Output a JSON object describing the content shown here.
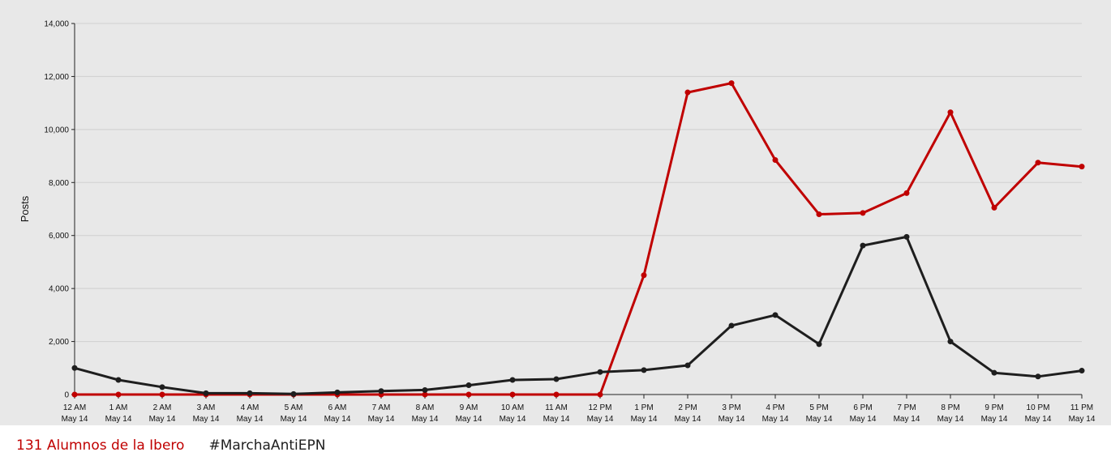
{
  "chart_data": {
    "type": "line",
    "title": "",
    "xlabel": "",
    "ylabel": "Posts",
    "ylim": [
      0,
      14000
    ],
    "yticks": [
      0,
      2000,
      4000,
      6000,
      8000,
      10000,
      12000,
      14000
    ],
    "ytick_labels": [
      "0",
      "2,000",
      "4,000",
      "6,000",
      "8,000",
      "10,000",
      "12,000",
      "14,000"
    ],
    "grid": true,
    "legend_position": "bottom-left",
    "categories": [
      {
        "time": "12 AM",
        "date": "May 14"
      },
      {
        "time": "1 AM",
        "date": "May 14"
      },
      {
        "time": "2 AM",
        "date": "May 14"
      },
      {
        "time": "3 AM",
        "date": "May 14"
      },
      {
        "time": "4 AM",
        "date": "May 14"
      },
      {
        "time": "5 AM",
        "date": "May 14"
      },
      {
        "time": "6 AM",
        "date": "May 14"
      },
      {
        "time": "7 AM",
        "date": "May 14"
      },
      {
        "time": "8 AM",
        "date": "May 14"
      },
      {
        "time": "9 AM",
        "date": "May 14"
      },
      {
        "time": "10 AM",
        "date": "May 14"
      },
      {
        "time": "11 AM",
        "date": "May 14"
      },
      {
        "time": "12 PM",
        "date": "May 14"
      },
      {
        "time": "1 PM",
        "date": "May 14"
      },
      {
        "time": "2 PM",
        "date": "May 14"
      },
      {
        "time": "3 PM",
        "date": "May 14"
      },
      {
        "time": "4 PM",
        "date": "May 14"
      },
      {
        "time": "5 PM",
        "date": "May 14"
      },
      {
        "time": "6 PM",
        "date": "May 14"
      },
      {
        "time": "7 PM",
        "date": "May 14"
      },
      {
        "time": "8 PM",
        "date": "May 14"
      },
      {
        "time": "9 PM",
        "date": "May 14"
      },
      {
        "time": "10 PM",
        "date": "May 14"
      },
      {
        "time": "11 PM",
        "date": "May 14"
      }
    ],
    "series": [
      {
        "name": "131 Alumnos de la Ibero",
        "color": "#c00000",
        "values": [
          0,
          0,
          0,
          0,
          0,
          0,
          0,
          0,
          0,
          0,
          0,
          0,
          0,
          4500,
          11400,
          11750,
          8850,
          6800,
          6850,
          7600,
          10650,
          7050,
          8750,
          8600
        ]
      },
      {
        "name": "#MarchaAntiEPN",
        "color": "#1e1e1e",
        "values": [
          1000,
          550,
          280,
          50,
          50,
          20,
          80,
          130,
          170,
          350,
          550,
          580,
          850,
          920,
          1100,
          2600,
          3000,
          1900,
          5620,
          5950,
          2000,
          820,
          680,
          900
        ]
      }
    ]
  },
  "colors": {
    "plot_background": "#e8e8e8",
    "grid": "#cfcfcf",
    "axis": "#222222"
  }
}
